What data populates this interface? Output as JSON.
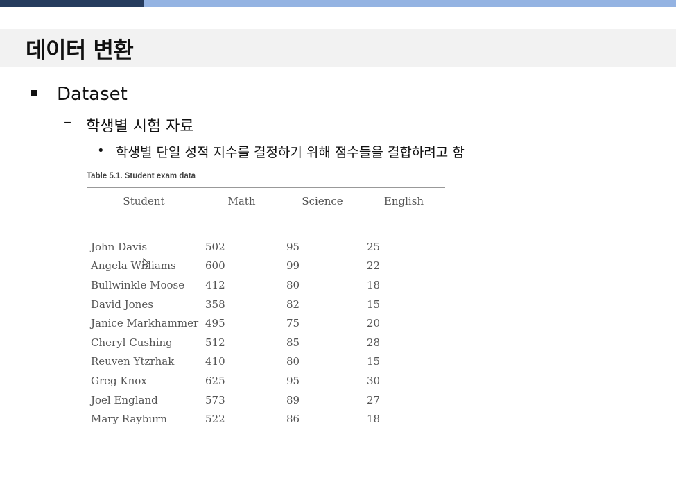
{
  "slide": {
    "title": "데이터 변환",
    "bullet1": "Dataset",
    "bullet2": "학생별 시험 자료",
    "bullet3": "학생별 단일 성적 지수를 결정하기 위해 점수들을 결합하려고 함"
  },
  "table": {
    "caption": "Table 5.1. Student exam data",
    "headers": [
      "Student",
      "Math",
      "Science",
      "English"
    ],
    "rows": [
      [
        "John Davis",
        "502",
        "95",
        "25"
      ],
      [
        "Angela Williams",
        "600",
        "99",
        "22"
      ],
      [
        "Bullwinkle Moose",
        "412",
        "80",
        "18"
      ],
      [
        "David Jones",
        "358",
        "82",
        "15"
      ],
      [
        "Janice Markhammer",
        "495",
        "75",
        "20"
      ],
      [
        "Cheryl Cushing",
        "512",
        "85",
        "28"
      ],
      [
        "Reuven Ytzrhak",
        "410",
        "80",
        "15"
      ],
      [
        "Greg Knox",
        "625",
        "95",
        "30"
      ],
      [
        "Joel England",
        "573",
        "89",
        "27"
      ],
      [
        "Mary Rayburn",
        "522",
        "86",
        "18"
      ]
    ]
  },
  "colors": {
    "top_bar_dark": "#263c5e",
    "top_bar_light": "#94b3e2",
    "title_band": "#f2f2f2"
  }
}
